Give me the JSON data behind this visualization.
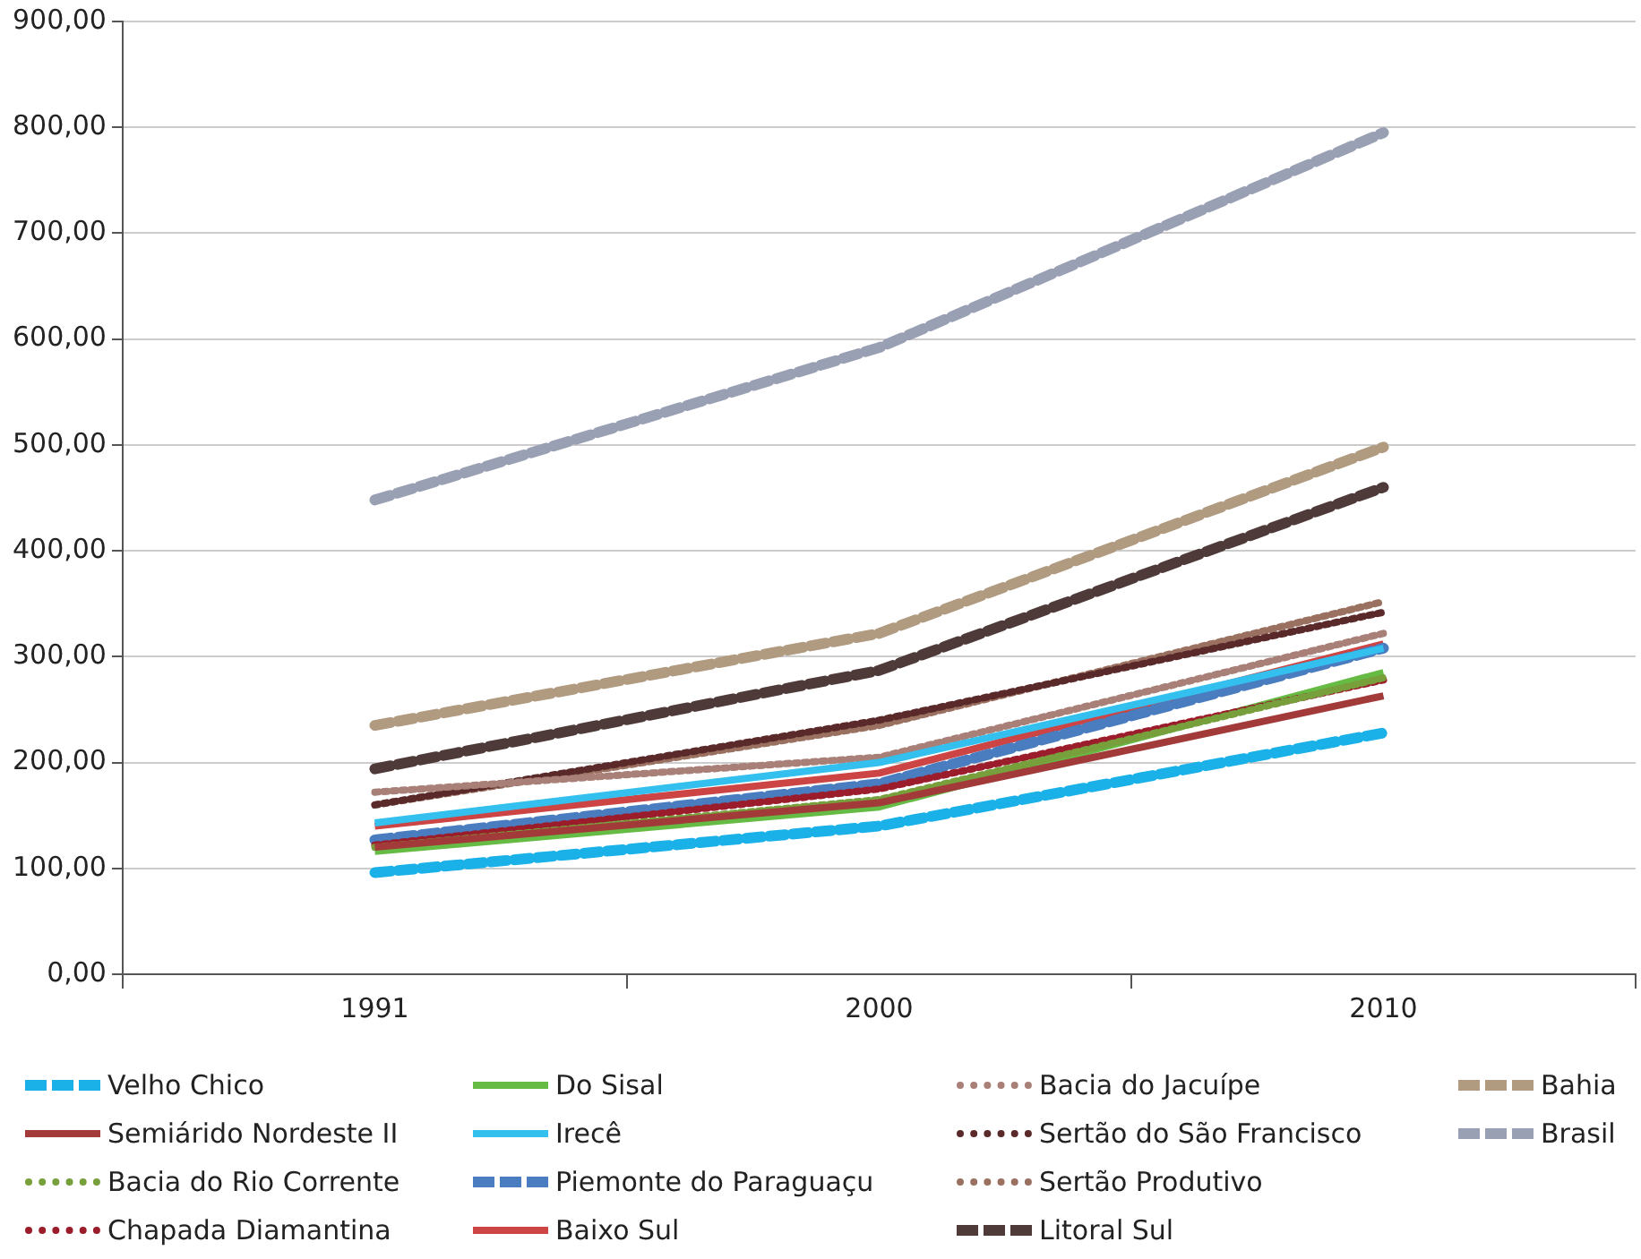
{
  "chart_data": {
    "type": "line",
    "categories": [
      "1991",
      "2000",
      "2010"
    ],
    "ylim": [
      0,
      900
    ],
    "yticks": [
      {
        "value": 0,
        "label": "0,00"
      },
      {
        "value": 100,
        "label": "100,00"
      },
      {
        "value": 200,
        "label": "200,00"
      },
      {
        "value": 300,
        "label": "300,00"
      },
      {
        "value": 400,
        "label": "400,00"
      },
      {
        "value": 500,
        "label": "500,00"
      },
      {
        "value": 600,
        "label": "600,00"
      },
      {
        "value": 700,
        "label": "700,00"
      },
      {
        "value": 800,
        "label": "800,00"
      },
      {
        "value": 900,
        "label": "900,00"
      }
    ],
    "grid": "y",
    "legend": "bottom",
    "marker": "none",
    "series": [
      {
        "name": "Velho Chico",
        "color": "#1ab0e8",
        "line_style": "dashed",
        "values": [
          96,
          140,
          228
        ]
      },
      {
        "name": "Semiárido Nordeste II",
        "color": "#a33a3a",
        "line_style": "solid",
        "values": [
          120,
          162,
          263
        ]
      },
      {
        "name": "Bacia do Rio Corrente",
        "color": "#77a03c",
        "line_style": "dotted",
        "values": [
          120,
          165,
          280
        ]
      },
      {
        "name": "Chapada Diamantina",
        "color": "#9b1c2a",
        "line_style": "dotted",
        "values": [
          122,
          175,
          278
        ]
      },
      {
        "name": "Do Sisal",
        "color": "#66bb44",
        "line_style": "solid",
        "values": [
          116,
          158,
          285
        ]
      },
      {
        "name": "Irecê",
        "color": "#33c0ee",
        "line_style": "solid",
        "values": [
          143,
          200,
          308
        ]
      },
      {
        "name": "Piemonte do Paraguaçu",
        "color": "#4a7cc0",
        "line_style": "dashed",
        "values": [
          127,
          180,
          308
        ]
      },
      {
        "name": "Baixo Sul",
        "color": "#cc4444",
        "line_style": "solid",
        "values": [
          140,
          190,
          312
        ]
      },
      {
        "name": "Bacia do Jacuípe",
        "color": "#a88078",
        "line_style": "dotted",
        "values": [
          172,
          205,
          322
        ]
      },
      {
        "name": "Sertão do São Francisco",
        "color": "#5a2a2a",
        "line_style": "dotted",
        "values": [
          160,
          240,
          342
        ]
      },
      {
        "name": "Sertão Produtivo",
        "color": "#9a7060",
        "line_style": "dotted",
        "values": [
          160,
          235,
          352
        ]
      },
      {
        "name": "Litoral Sul",
        "color": "#4f3a3a",
        "line_style": "dashed",
        "values": [
          194,
          287,
          460
        ]
      },
      {
        "name": "Bahia",
        "color": "#b09a80",
        "line_style": "dashed",
        "values": [
          235,
          322,
          498
        ]
      },
      {
        "name": "Brasil",
        "color": "#9aa0b4",
        "line_style": "dashed",
        "values": [
          448,
          592,
          795
        ]
      }
    ]
  }
}
